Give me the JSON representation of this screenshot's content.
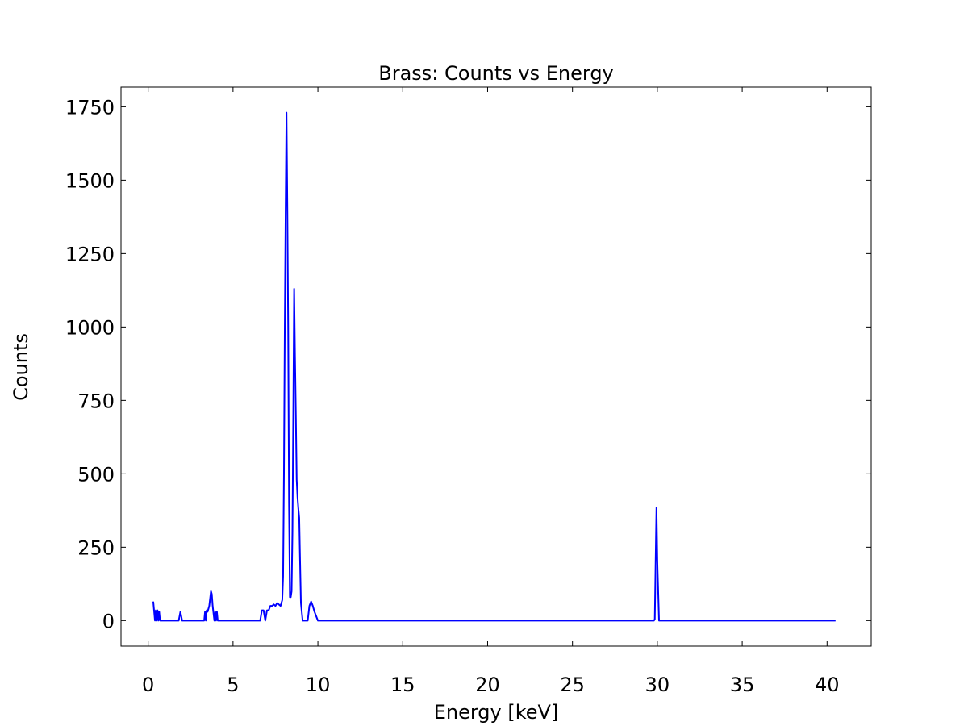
{
  "chart_data": {
    "type": "line",
    "title": "Brass: Counts vs Energy",
    "xlabel": "Energy [keV]",
    "ylabel": "Counts",
    "xlim": [
      -1.6,
      42.6
    ],
    "ylim": [
      -87,
      1817
    ],
    "xticks": [
      0,
      5,
      10,
      15,
      20,
      25,
      30,
      35,
      40
    ],
    "yticks": [
      0,
      250,
      500,
      750,
      1000,
      1250,
      1500,
      1750
    ],
    "grid": false,
    "line_color": "#0000ff",
    "series": [
      {
        "x": [
          0.3,
          0.4,
          0.45,
          0.5,
          0.55,
          0.6,
          0.65,
          0.7,
          0.8,
          1.0,
          1.5,
          1.8,
          1.9,
          2.0,
          2.1,
          2.5,
          3.0,
          3.3,
          3.35,
          3.4,
          3.45,
          3.5,
          3.6,
          3.7,
          3.75,
          3.8,
          3.9,
          3.95,
          4.0,
          4.05,
          4.1,
          4.15,
          4.2,
          4.4,
          5.0,
          6.0,
          6.5,
          6.6,
          6.7,
          6.8,
          6.9,
          7.0,
          7.1,
          7.2,
          7.3,
          7.4,
          7.5,
          7.6,
          7.7,
          7.8,
          7.9,
          7.95,
          8.0,
          8.05,
          8.1,
          8.15,
          8.2,
          8.25,
          8.3,
          8.35,
          8.4,
          8.45,
          8.5,
          8.55,
          8.6,
          8.65,
          8.7,
          8.75,
          8.8,
          8.85,
          8.9,
          8.95,
          9.0,
          9.05,
          9.1,
          9.15,
          9.2,
          9.3,
          9.4,
          9.5,
          9.6,
          9.7,
          9.8,
          10.0,
          15.0,
          20.0,
          25.0,
          29.5,
          29.7,
          29.8,
          29.85,
          29.9,
          29.95,
          30.0,
          30.1,
          30.3,
          35.0,
          40.5
        ],
        "y": [
          65,
          0,
          35,
          0,
          35,
          0,
          30,
          0,
          0,
          0,
          0,
          0,
          30,
          0,
          0,
          0,
          0,
          0,
          30,
          0,
          35,
          30,
          50,
          100,
          90,
          50,
          0,
          30,
          0,
          30,
          0,
          0,
          0,
          0,
          0,
          0,
          0,
          0,
          35,
          35,
          0,
          35,
          35,
          50,
          50,
          55,
          50,
          60,
          55,
          50,
          70,
          150,
          500,
          1000,
          1400,
          1730,
          1400,
          1000,
          400,
          80,
          80,
          100,
          300,
          700,
          1130,
          900,
          700,
          480,
          420,
          380,
          350,
          200,
          60,
          30,
          0,
          0,
          0,
          0,
          0,
          50,
          65,
          50,
          30,
          0,
          0,
          0,
          0,
          0,
          0,
          0,
          5,
          200,
          385,
          200,
          0,
          0,
          0,
          0
        ]
      }
    ]
  }
}
